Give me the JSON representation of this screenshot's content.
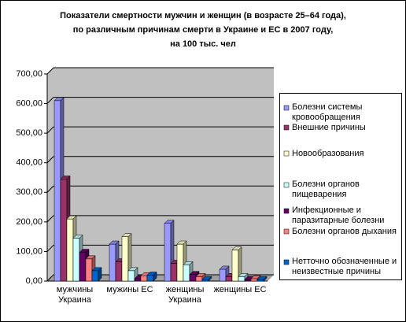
{
  "chart_data": {
    "type": "bar3d",
    "title": [
      "Показатели смертности мужчин и женщин (в возрасте 25–64 года),",
      "по различным причинам смерти в Украине и ЕС в 2007 году,",
      "на 100 тыс. чел"
    ],
    "categories": [
      "мужчины Украина",
      "мужины ЕС",
      "женщины Украина",
      "женщины ЕС"
    ],
    "series": [
      {
        "name": "Болезни системы кровообращения",
        "color": "#9999ff",
        "values": [
          610,
          125,
          195,
          40
        ]
      },
      {
        "name": "Внешние причины",
        "color": "#993366",
        "values": [
          345,
          65,
          60,
          15
        ]
      },
      {
        "name": "Новообразования",
        "color": "#ffffcc",
        "values": [
          210,
          150,
          125,
          105
        ]
      },
      {
        "name": "Болезни органов пищеварения",
        "color": "#ccffff",
        "values": [
          145,
          35,
          55,
          15
        ]
      },
      {
        "name": "Инфекционные и паразитарные болезни",
        "color": "#660066",
        "values": [
          97,
          8,
          22,
          5
        ]
      },
      {
        "name": "Болезни органов дыхания",
        "color": "#ff8080",
        "values": [
          75,
          18,
          15,
          8
        ]
      },
      {
        "name": "Нетточно обозначенные и неизвестные причины",
        "color": "#0066cc",
        "values": [
          35,
          20,
          5,
          5
        ]
      }
    ],
    "ylim": [
      0,
      700
    ],
    "yticks": [
      {
        "value": 0,
        "label": "0,00"
      },
      {
        "value": 100,
        "label": "100,00"
      },
      {
        "value": 200,
        "label": "200,00"
      },
      {
        "value": 300,
        "label": "300,00"
      },
      {
        "value": 400,
        "label": "400,00"
      },
      {
        "value": 500,
        "label": "500,00"
      },
      {
        "value": 600,
        "label": "600,00"
      },
      {
        "value": 700,
        "label": "700,00"
      }
    ],
    "legend": "right"
  }
}
